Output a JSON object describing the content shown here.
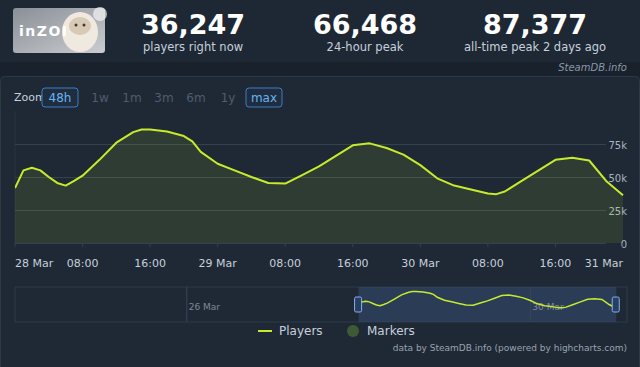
{
  "header": {
    "game": "inZOI",
    "stats": [
      {
        "value": "36,247",
        "label": "players right now"
      },
      {
        "value": "66,468",
        "label": "24-hour peak"
      },
      {
        "value": "87,377",
        "label": "all-time peak 2 days ago"
      }
    ]
  },
  "source_label": "SteamDB.info",
  "zoom": {
    "label": "Zoom",
    "buttons": [
      {
        "label": "48h",
        "active": true
      },
      {
        "label": "1w",
        "active": false
      },
      {
        "label": "1m",
        "active": false
      },
      {
        "label": "3m",
        "active": false
      },
      {
        "label": "6m",
        "active": false
      },
      {
        "label": "1y",
        "active": false
      },
      {
        "label": "max",
        "active": true
      }
    ]
  },
  "navigator": {
    "xlim": [
      -96,
      75
    ],
    "xticks": [
      {
        "value": -48,
        "label": "26 Mar"
      },
      {
        "value": 48,
        "label": "30 Mar"
      }
    ],
    "selected": [
      0,
      72
    ]
  },
  "credits": "data by SteamDB.info (powered by highcharts.com)",
  "chart_data": {
    "type": "area",
    "x": [
      0,
      1,
      2,
      3,
      4,
      5,
      6,
      7,
      8,
      10,
      12,
      14,
      15,
      16,
      18,
      20,
      21,
      22,
      24,
      26,
      28,
      30,
      32,
      34,
      36,
      38,
      40,
      42,
      44,
      46,
      48,
      50,
      52,
      54,
      56,
      57,
      58,
      60,
      62,
      64,
      66,
      68,
      70,
      72
    ],
    "series": [
      {
        "name": "Players",
        "color": "#c8ea2c",
        "values": [
          41700,
          55000,
          57000,
          55000,
          50000,
          45500,
          43500,
          47000,
          51000,
          63000,
          76000,
          84000,
          86000,
          86000,
          84500,
          81000,
          77000,
          69000,
          60000,
          55000,
          50000,
          45500,
          45000,
          51500,
          58000,
          66000,
          74000,
          75500,
          72000,
          67000,
          59000,
          49000,
          43500,
          40500,
          37500,
          37000,
          39000,
          47000,
          55000,
          63000,
          64500,
          62500,
          47000,
          36247
        ]
      },
      {
        "name": "Markers",
        "type": "scatter",
        "color": "#3e5a35",
        "marker": "circle",
        "values": [
          null,
          null,
          null,
          null,
          null,
          null,
          null,
          null,
          null,
          null,
          null,
          null,
          null,
          null,
          null,
          null,
          null,
          null,
          null,
          null,
          null,
          null,
          null,
          null,
          null,
          null,
          null,
          null,
          null,
          null,
          null,
          null,
          null,
          null,
          null,
          null,
          null,
          null,
          null,
          null,
          null,
          null,
          null,
          null
        ]
      }
    ],
    "xlim": [
      0,
      72
    ],
    "xticks": [
      {
        "value": 0,
        "label": "28 Mar"
      },
      {
        "value": 8,
        "label": "08:00"
      },
      {
        "value": 16,
        "label": "16:00"
      },
      {
        "value": 24,
        "label": "29 Mar"
      },
      {
        "value": 32,
        "label": "08:00"
      },
      {
        "value": 40,
        "label": "16:00"
      },
      {
        "value": 48,
        "label": "30 Mar"
      },
      {
        "value": 56,
        "label": "08:00"
      },
      {
        "value": 64,
        "label": "16:00"
      },
      {
        "value": 72,
        "label": "31 Mar"
      }
    ],
    "ylim": [
      0,
      100000
    ],
    "yticks": [
      0,
      {
        "value": 25000,
        "label": "25k"
      },
      {
        "value": 50000,
        "label": "50k"
      },
      {
        "value": 75000,
        "label": "75k"
      }
    ],
    "grid": true,
    "legend": "bottom"
  }
}
